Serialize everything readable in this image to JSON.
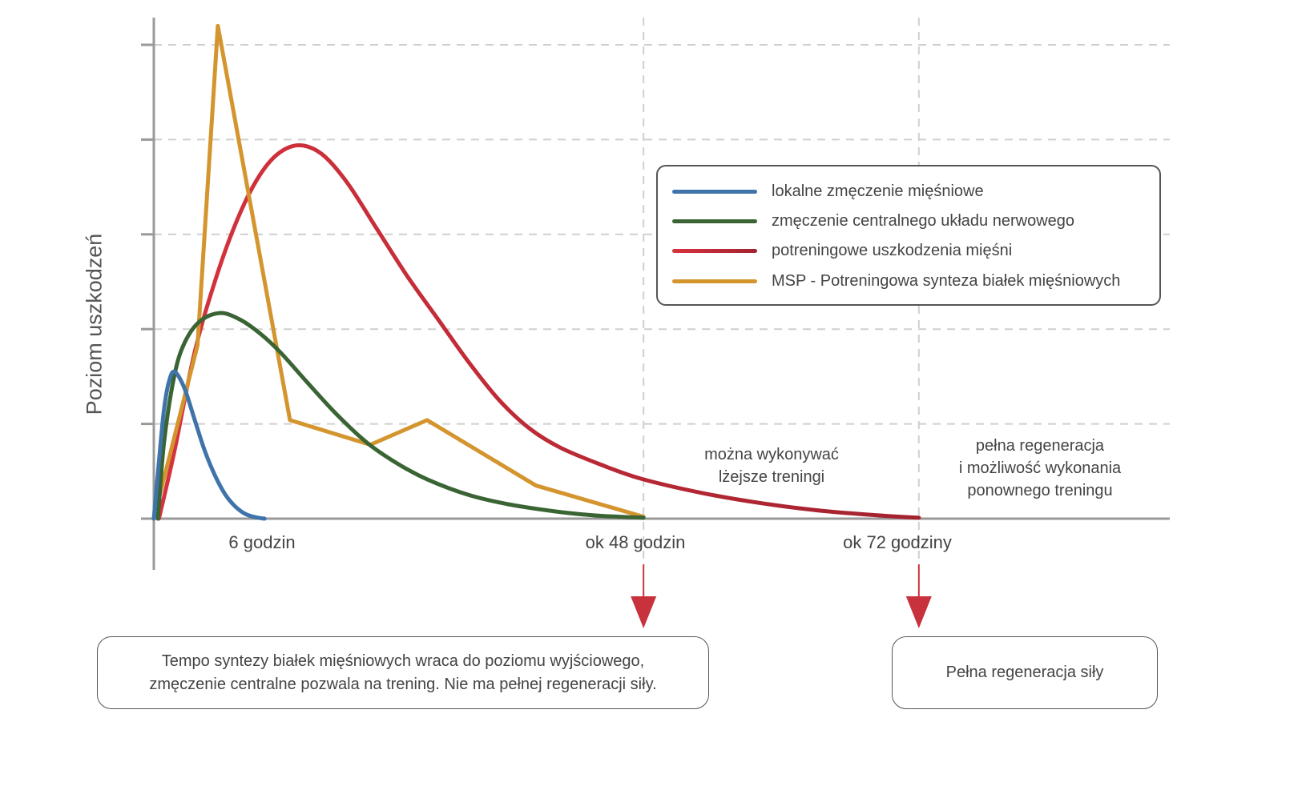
{
  "chart_data": {
    "type": "line",
    "title": "",
    "xlabel": "",
    "ylabel": "Poziom uszkodzeń",
    "x_units": "relative time (0-100 scale; 48h ≈ 48.2, 72h ≈ 75.3)",
    "xlim": [
      0,
      100
    ],
    "ylim": [
      0,
      5.3
    ],
    "grid": true,
    "legend_position": "top-right",
    "x_tick_labels": [
      {
        "x": 10.6,
        "label": "6 godzin"
      },
      {
        "x": 47.4,
        "label": "ok 48 godzin"
      },
      {
        "x": 73.2,
        "label": "ok 72 godziny"
      }
    ],
    "reference_lines": [
      48.2,
      75.3
    ],
    "y_gridlines": [
      1,
      2,
      3,
      4,
      5
    ],
    "series": [
      {
        "name": "lokalne zmęczenie mięśniowe",
        "color": "#3f74aa",
        "points": [
          [
            0,
            0
          ],
          [
            0.5,
            0.6
          ],
          [
            1,
            1.15
          ],
          [
            1.5,
            1.45
          ],
          [
            2.05,
            1.55
          ],
          [
            3,
            1.38
          ],
          [
            4,
            1.05
          ],
          [
            5,
            0.72
          ],
          [
            6,
            0.46
          ],
          [
            7,
            0.26
          ],
          [
            8,
            0.13
          ],
          [
            9,
            0.05
          ],
          [
            10,
            0.015
          ],
          [
            10.9,
            0
          ]
        ]
      },
      {
        "name": "zmęczenie centralnego układu nerwowego",
        "color": "#3a6434",
        "points": [
          [
            0.4,
            0
          ],
          [
            1,
            0.8
          ],
          [
            2,
            1.5
          ],
          [
            3,
            1.85
          ],
          [
            4.5,
            2.08
          ],
          [
            6.5,
            2.17
          ],
          [
            8.5,
            2.1
          ],
          [
            10.5,
            1.95
          ],
          [
            12.5,
            1.75
          ],
          [
            15,
            1.45
          ],
          [
            18,
            1.1
          ],
          [
            21,
            0.8
          ],
          [
            24,
            0.58
          ],
          [
            27,
            0.41
          ],
          [
            31,
            0.25
          ],
          [
            35,
            0.15
          ],
          [
            40,
            0.07
          ],
          [
            44,
            0.03
          ],
          [
            48.2,
            0.01
          ]
        ]
      },
      {
        "name": "potreningowe uszkodzenia mięśni",
        "color": "#d6333d",
        "color_end": "#a3222f",
        "points": [
          [
            0.5,
            0
          ],
          [
            2,
            0.7
          ],
          [
            4,
            1.75
          ],
          [
            6,
            2.5
          ],
          [
            8,
            3.1
          ],
          [
            10,
            3.55
          ],
          [
            12,
            3.83
          ],
          [
            14.2,
            3.94
          ],
          [
            16.5,
            3.85
          ],
          [
            19,
            3.55
          ],
          [
            22,
            3.05
          ],
          [
            25,
            2.55
          ],
          [
            28,
            2.1
          ],
          [
            31,
            1.65
          ],
          [
            34,
            1.25
          ],
          [
            37,
            0.95
          ],
          [
            40,
            0.75
          ],
          [
            44,
            0.57
          ],
          [
            48,
            0.42
          ],
          [
            54,
            0.27
          ],
          [
            60,
            0.16
          ],
          [
            66,
            0.08
          ],
          [
            72,
            0.03
          ],
          [
            75.3,
            0.01
          ]
        ]
      },
      {
        "name": "MSP - Potreningowa synteza białek mięśniowych",
        "color": "#d4952f",
        "points": [
          [
            0,
            0
          ],
          [
            4.3,
            1.83
          ],
          [
            6.3,
            5.2
          ],
          [
            13.4,
            1.04
          ],
          [
            21.3,
            0.78
          ],
          [
            26.9,
            1.04
          ],
          [
            37.6,
            0.35
          ],
          [
            48.2,
            0.02
          ]
        ]
      }
    ],
    "annotations": [
      {
        "x": 60.3,
        "lines": [
          "można wykonywać",
          "lżejsze treningi"
        ]
      },
      {
        "x": 87.2,
        "lines": [
          "pełna regeneracja",
          "i możliwość wykonania",
          "ponownego treningu"
        ]
      }
    ],
    "callouts": [
      {
        "arrow_at": 48.2,
        "text_lines": [
          "Tempo syntezy białek mięśniowych wraca do poziomu wyjściowego,",
          "zmęczenie centralne pozwala na trening. Nie ma pełnej regeneracji siły."
        ]
      },
      {
        "arrow_at": 75.3,
        "text_lines": [
          "Pełna regeneracja siły"
        ]
      }
    ],
    "arrow_color": "#c8323c"
  }
}
